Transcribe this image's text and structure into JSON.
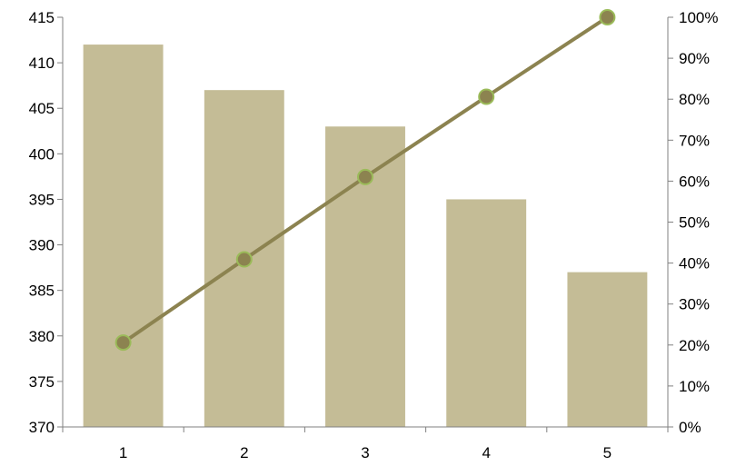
{
  "chart_data": {
    "type": "bar",
    "title": "",
    "xlabel": "",
    "ylabel": "",
    "categories": [
      "1",
      "2",
      "3",
      "4",
      "5"
    ],
    "series": [
      {
        "type": "bar",
        "axis": "left",
        "values": [
          412,
          407,
          403,
          395,
          387
        ]
      },
      {
        "type": "line",
        "axis": "right",
        "values": [
          20.6,
          40.9,
          61.0,
          80.6,
          100
        ]
      }
    ],
    "ylim": [
      370,
      415
    ],
    "y_ticks": [
      "370",
      "375",
      "380",
      "385",
      "390",
      "395",
      "400",
      "405",
      "410",
      "415"
    ],
    "y2lim": [
      0,
      100
    ],
    "y2_ticks": [
      "0%",
      "10%",
      "20%",
      "30%",
      "40%",
      "50%",
      "60%",
      "70%",
      "80%",
      "90%",
      "100%"
    ],
    "grid": false,
    "legend": "none",
    "colors": {
      "bar": "#c4bc96",
      "line": "#8c8350",
      "marker_fill": "#8c8350",
      "marker_edge": "#9bbb59",
      "axis": "#808080"
    }
  }
}
